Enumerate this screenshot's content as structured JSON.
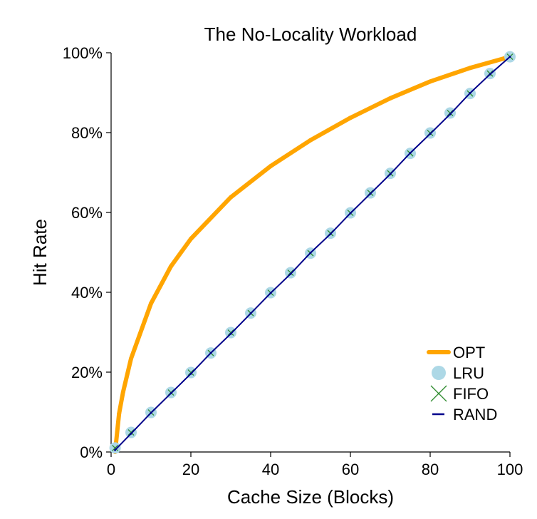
{
  "colors": {
    "OPT": "#ffa500",
    "LRU": "#add8e6",
    "FIFO": "#2e8b2e",
    "RAND": "#00008b"
  },
  "chart_data": {
    "type": "line",
    "title": "The No-Locality Workload",
    "xlabel": "Cache Size (Blocks)",
    "ylabel": "Hit Rate",
    "xlim": [
      0,
      100
    ],
    "ylim": [
      0,
      100
    ],
    "x_ticks": [
      0,
      20,
      40,
      60,
      80,
      100
    ],
    "x_tick_labels": [
      "0",
      "20",
      "40",
      "60",
      "80",
      "100"
    ],
    "y_ticks": [
      0,
      20,
      40,
      60,
      80,
      100
    ],
    "y_tick_labels": [
      "0%",
      "20%",
      "40%",
      "60%",
      "80%",
      "100%"
    ],
    "grid": false,
    "legend_position": "bottom-right",
    "legend": [
      "OPT",
      "LRU",
      "FIFO",
      "RAND"
    ],
    "series": [
      {
        "name": "OPT",
        "style": "line",
        "x": [
          1,
          2,
          3,
          5,
          10,
          15,
          20,
          30,
          40,
          50,
          60,
          70,
          80,
          90,
          100
        ],
        "y": [
          0.0,
          9.6,
          15.0,
          23.4,
          37.2,
          46.5,
          53.4,
          63.8,
          71.6,
          78.1,
          83.7,
          88.6,
          92.8,
          96.2,
          99.0
        ]
      },
      {
        "name": "LRU",
        "style": "markers-circle",
        "x": [
          1,
          5,
          10,
          15,
          20,
          25,
          30,
          35,
          40,
          45,
          50,
          55,
          60,
          65,
          70,
          75,
          80,
          85,
          90,
          95,
          100
        ],
        "y": [
          1.0,
          4.9,
          9.9,
          14.9,
          19.9,
          24.8,
          29.9,
          34.8,
          39.9,
          44.9,
          49.8,
          54.8,
          59.9,
          64.9,
          69.8,
          74.8,
          79.9,
          84.9,
          89.8,
          94.8,
          99.0
        ]
      },
      {
        "name": "FIFO",
        "style": "markers-x",
        "x": [
          1,
          5,
          10,
          15,
          20,
          25,
          30,
          35,
          40,
          45,
          50,
          55,
          60,
          65,
          70,
          75,
          80,
          85,
          90,
          95,
          100
        ],
        "y": [
          1.0,
          4.9,
          9.9,
          14.9,
          19.9,
          24.8,
          29.9,
          34.8,
          39.9,
          44.9,
          49.8,
          54.8,
          59.9,
          64.9,
          69.8,
          74.8,
          79.9,
          84.9,
          89.8,
          94.8,
          99.0
        ]
      },
      {
        "name": "RAND",
        "style": "line",
        "x": [
          1,
          5,
          10,
          15,
          20,
          25,
          30,
          35,
          40,
          45,
          50,
          55,
          60,
          65,
          70,
          75,
          80,
          85,
          90,
          95,
          100
        ],
        "y": [
          0.5,
          4.6,
          9.8,
          14.7,
          19.6,
          24.8,
          29.6,
          34.7,
          39.8,
          44.6,
          49.9,
          54.6,
          59.8,
          64.7,
          69.6,
          74.9,
          79.7,
          84.6,
          89.9,
          94.6,
          99.0
        ]
      }
    ]
  }
}
